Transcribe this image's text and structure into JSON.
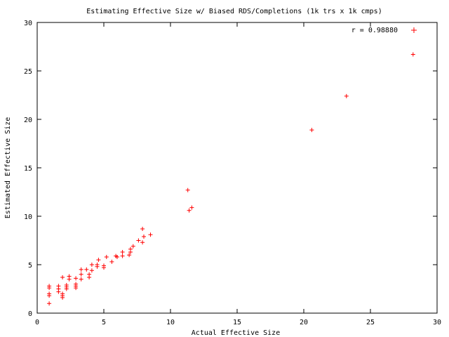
{
  "chart_data": {
    "type": "scatter",
    "title": "Estimating Effective Size w/ Biased RDS/Completions (1k trs x 1k cmps)",
    "xlabel": "Actual Effective Size",
    "ylabel": "Estimated Effective Size",
    "xlim": [
      0,
      30
    ],
    "ylim": [
      0,
      30
    ],
    "xticks": [
      0,
      5,
      10,
      15,
      20,
      25,
      30
    ],
    "yticks": [
      0,
      5,
      10,
      15,
      20,
      25,
      30
    ],
    "grid": false,
    "legend": {
      "placement": "top-right",
      "entries": [
        {
          "label": "r = 0.98880",
          "marker": "+",
          "color": "#ff0000"
        }
      ]
    },
    "series": [
      {
        "name": "r = 0.98880",
        "color": "#ff0000",
        "marker": "+",
        "points": [
          [
            0.9,
            1.0
          ],
          [
            0.9,
            1.8
          ],
          [
            0.9,
            2.0
          ],
          [
            0.9,
            2.6
          ],
          [
            0.9,
            2.8
          ],
          [
            1.6,
            2.2
          ],
          [
            1.6,
            2.5
          ],
          [
            1.6,
            2.8
          ],
          [
            1.9,
            1.6
          ],
          [
            1.9,
            1.8
          ],
          [
            1.9,
            2.0
          ],
          [
            1.9,
            3.7
          ],
          [
            2.2,
            2.5
          ],
          [
            2.2,
            2.7
          ],
          [
            2.2,
            2.9
          ],
          [
            2.4,
            3.5
          ],
          [
            2.4,
            3.8
          ],
          [
            2.9,
            2.6
          ],
          [
            2.9,
            2.8
          ],
          [
            2.9,
            3.0
          ],
          [
            2.9,
            3.6
          ],
          [
            3.3,
            3.5
          ],
          [
            3.3,
            4.0
          ],
          [
            3.3,
            4.5
          ],
          [
            3.7,
            4.5
          ],
          [
            3.9,
            3.7
          ],
          [
            3.9,
            4.0
          ],
          [
            4.1,
            4.4
          ],
          [
            4.1,
            5.0
          ],
          [
            4.5,
            4.8
          ],
          [
            4.5,
            5.0
          ],
          [
            4.6,
            5.5
          ],
          [
            5.0,
            4.7
          ],
          [
            5.0,
            4.9
          ],
          [
            5.2,
            5.8
          ],
          [
            5.6,
            5.3
          ],
          [
            5.9,
            5.9
          ],
          [
            6.0,
            5.8
          ],
          [
            6.4,
            5.9
          ],
          [
            6.4,
            6.3
          ],
          [
            6.9,
            6.0
          ],
          [
            7.0,
            6.3
          ],
          [
            7.0,
            6.6
          ],
          [
            7.2,
            6.9
          ],
          [
            7.6,
            7.5
          ],
          [
            7.9,
            8.7
          ],
          [
            7.9,
            7.3
          ],
          [
            8.0,
            7.9
          ],
          [
            8.5,
            8.1
          ],
          [
            11.3,
            12.7
          ],
          [
            11.4,
            10.6
          ],
          [
            11.6,
            10.9
          ],
          [
            20.6,
            18.9
          ],
          [
            23.2,
            22.4
          ],
          [
            28.2,
            26.7
          ]
        ]
      }
    ]
  }
}
